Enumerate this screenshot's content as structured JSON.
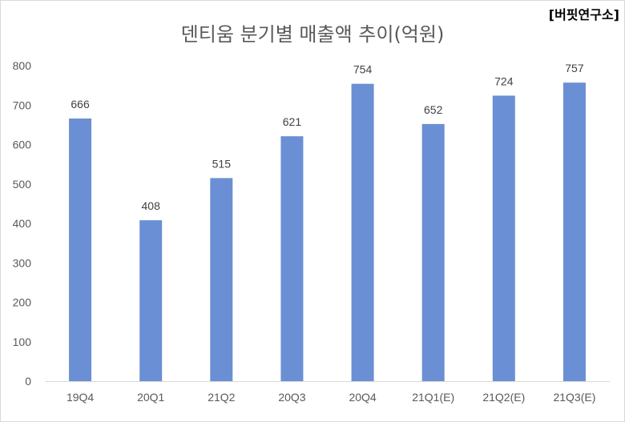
{
  "chart_data": {
    "type": "bar",
    "title": "덴티움 분기별 매출액 추이(억원)",
    "categories": [
      "19Q4",
      "20Q1",
      "21Q2",
      "20Q3",
      "20Q4",
      "21Q1(E)",
      "21Q2(E)",
      "21Q3(E)"
    ],
    "values": [
      666,
      408,
      515,
      621,
      754,
      652,
      724,
      757
    ],
    "data_labels": [
      "666",
      "408",
      "515",
      "621",
      "754",
      "652",
      "724",
      "757"
    ],
    "ylim": [
      0,
      800
    ],
    "yticks": [
      "0",
      "100",
      "200",
      "300",
      "400",
      "500",
      "600",
      "700",
      "800"
    ],
    "xlabel": "",
    "ylabel": "",
    "grid": false,
    "bar_color": "#6a8fd4"
  },
  "source_tag": "[버핏연구소]"
}
